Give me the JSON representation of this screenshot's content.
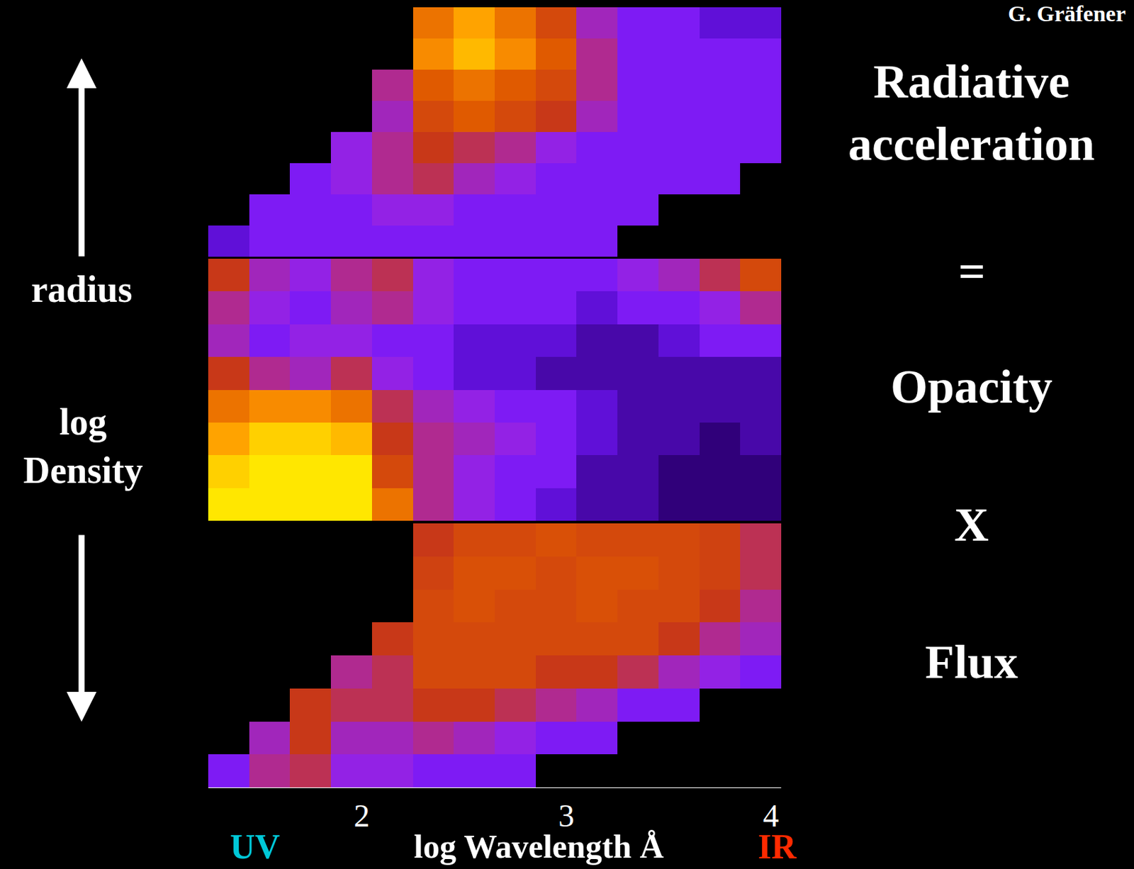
{
  "credit": "G. Gräfener",
  "equation": [
    "Radiative acceleration",
    "=",
    "Opacity",
    "X",
    "Flux"
  ],
  "y_arrow_label": "radius",
  "y_label": "log Density",
  "x_label": "log Wavelength Å",
  "x_end_labels": [
    {
      "text": "UV",
      "color": "#00c8d8"
    },
    {
      "text": "IR",
      "color": "#ff2a00"
    }
  ],
  "chart_data": {
    "type": "heatmap",
    "x": [
      1.35,
      1.55,
      1.75,
      1.95,
      2.15,
      2.35,
      2.55,
      2.75,
      2.95,
      3.15,
      3.35,
      3.55,
      3.75,
      3.95
    ],
    "xlim": [
      1.25,
      4.05
    ],
    "xticks": [
      2,
      3,
      4
    ],
    "zlim": [
      0,
      1
    ],
    "tick_labels": "x",
    "grid": false,
    "panels": [
      {
        "z": [
          [
            0.25,
            0.3,
            0.3,
            0.3,
            0.3,
            0.3,
            0.3,
            0.3,
            0.3,
            0.3,
            null,
            null,
            null,
            null
          ],
          [
            null,
            0.3,
            0.3,
            0.3,
            0.35,
            0.35,
            0.3,
            0.3,
            0.3,
            0.3,
            0.3,
            null,
            null,
            null
          ],
          [
            null,
            null,
            0.3,
            0.35,
            0.45,
            0.5,
            0.4,
            0.35,
            0.3,
            0.3,
            0.3,
            0.3,
            0.3,
            null
          ],
          [
            null,
            null,
            null,
            0.35,
            0.45,
            0.55,
            0.5,
            0.45,
            0.35,
            0.3,
            0.3,
            0.3,
            0.3,
            0.3
          ],
          [
            null,
            null,
            null,
            null,
            0.4,
            0.6,
            0.65,
            0.6,
            0.55,
            0.4,
            0.3,
            0.3,
            0.3,
            0.3
          ],
          [
            null,
            null,
            null,
            null,
            0.45,
            0.65,
            0.7,
            0.65,
            0.6,
            0.45,
            0.3,
            0.3,
            0.3,
            0.3
          ],
          [
            null,
            null,
            null,
            null,
            null,
            0.75,
            0.85,
            0.75,
            0.65,
            0.45,
            0.3,
            0.3,
            0.3,
            0.3
          ],
          [
            null,
            null,
            null,
            null,
            null,
            0.7,
            0.8,
            0.7,
            0.6,
            0.4,
            0.3,
            0.3,
            0.25,
            0.25
          ]
        ]
      },
      {
        "z": [
          [
            0.95,
            0.95,
            0.95,
            0.95,
            0.7,
            0.45,
            0.35,
            0.3,
            0.25,
            0.2,
            0.2,
            0.15,
            0.15,
            0.15
          ],
          [
            0.9,
            0.95,
            0.95,
            0.95,
            0.6,
            0.45,
            0.35,
            0.3,
            0.3,
            0.2,
            0.2,
            0.15,
            0.15,
            0.15
          ],
          [
            0.8,
            0.9,
            0.9,
            0.85,
            0.55,
            0.45,
            0.4,
            0.35,
            0.3,
            0.25,
            0.2,
            0.2,
            0.15,
            0.2
          ],
          [
            0.7,
            0.75,
            0.75,
            0.7,
            0.5,
            0.4,
            0.35,
            0.3,
            0.3,
            0.25,
            0.2,
            0.2,
            0.2,
            0.2
          ],
          [
            0.55,
            0.45,
            0.4,
            0.5,
            0.35,
            0.3,
            0.25,
            0.25,
            0.2,
            0.2,
            0.2,
            0.2,
            0.2,
            0.2
          ],
          [
            0.4,
            0.3,
            0.35,
            0.35,
            0.3,
            0.3,
            0.25,
            0.25,
            0.25,
            0.2,
            0.2,
            0.25,
            0.3,
            0.3
          ],
          [
            0.45,
            0.35,
            0.3,
            0.4,
            0.45,
            0.35,
            0.3,
            0.3,
            0.3,
            0.25,
            0.3,
            0.3,
            0.35,
            0.45
          ],
          [
            0.55,
            0.4,
            0.35,
            0.45,
            0.5,
            0.35,
            0.3,
            0.3,
            0.3,
            0.3,
            0.35,
            0.4,
            0.5,
            0.6
          ]
        ]
      },
      {
        "z": [
          [
            0.3,
            0.45,
            0.5,
            0.35,
            0.35,
            0.3,
            0.3,
            0.3,
            null,
            null,
            null,
            null,
            null,
            null
          ],
          [
            null,
            0.4,
            0.55,
            0.4,
            0.4,
            0.45,
            0.4,
            0.35,
            0.3,
            0.3,
            null,
            null,
            null,
            null
          ],
          [
            null,
            null,
            0.55,
            0.5,
            0.5,
            0.55,
            0.55,
            0.5,
            0.45,
            0.4,
            0.3,
            0.3,
            null,
            null
          ],
          [
            null,
            null,
            null,
            0.45,
            0.5,
            0.6,
            0.6,
            0.6,
            0.55,
            0.55,
            0.5,
            0.4,
            0.35,
            0.3
          ],
          [
            null,
            null,
            null,
            null,
            0.55,
            0.6,
            0.6,
            0.6,
            0.6,
            0.6,
            0.6,
            0.55,
            0.45,
            0.4
          ],
          [
            null,
            null,
            null,
            null,
            null,
            0.6,
            0.62,
            0.6,
            0.6,
            0.62,
            0.6,
            0.6,
            0.55,
            0.45
          ],
          [
            null,
            null,
            null,
            null,
            null,
            0.58,
            0.62,
            0.62,
            0.6,
            0.62,
            0.62,
            0.6,
            0.58,
            0.5
          ],
          [
            null,
            null,
            null,
            null,
            null,
            0.55,
            0.6,
            0.6,
            0.62,
            0.6,
            0.6,
            0.6,
            0.58,
            0.5
          ]
        ]
      }
    ]
  }
}
